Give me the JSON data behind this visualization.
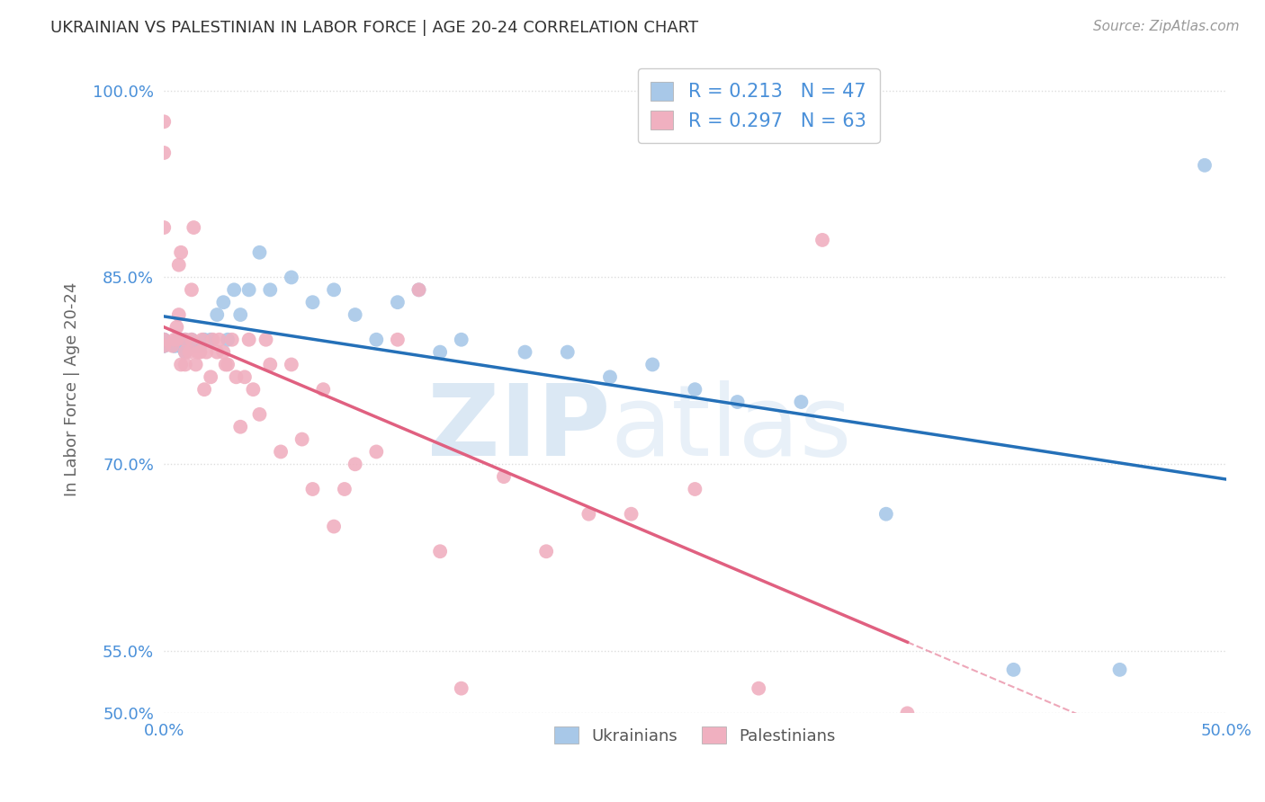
{
  "title": "UKRAINIAN VS PALESTINIAN IN LABOR FORCE | AGE 20-24 CORRELATION CHART",
  "source": "Source: ZipAtlas.com",
  "ylabel_label": "In Labor Force | Age 20-24",
  "watermark_zip": "ZIP",
  "watermark_atlas": "atlas",
  "xlim": [
    0.0,
    0.5
  ],
  "ylim": [
    0.5,
    1.02
  ],
  "xticks": [
    0.0,
    0.1,
    0.2,
    0.3,
    0.4,
    0.5
  ],
  "yticks": [
    0.5,
    0.55,
    0.7,
    0.85,
    1.0
  ],
  "ytick_labels": [
    "50.0%",
    "55.0%",
    "70.0%",
    "85.0%",
    "100.0%"
  ],
  "xtick_labels": [
    "0.0%",
    "",
    "",
    "",
    "",
    "50.0%"
  ],
  "R_ukrainian": 0.213,
  "N_ukrainian": 47,
  "R_palestinian": 0.297,
  "N_palestinian": 63,
  "ukrainian_color": "#a8c8e8",
  "ukrainian_line_color": "#2470b8",
  "palestinian_color": "#f0b0c0",
  "palestinian_line_color": "#e06080",
  "ukrainian_scatter_x": [
    0.0,
    0.0,
    0.0,
    0.0,
    0.005,
    0.005,
    0.007,
    0.007,
    0.008,
    0.008,
    0.01,
    0.01,
    0.01,
    0.012,
    0.013,
    0.015,
    0.017,
    0.019,
    0.022,
    0.025,
    0.028,
    0.03,
    0.033,
    0.036,
    0.04,
    0.045,
    0.05,
    0.06,
    0.07,
    0.08,
    0.09,
    0.1,
    0.11,
    0.12,
    0.13,
    0.14,
    0.17,
    0.19,
    0.21,
    0.23,
    0.25,
    0.27,
    0.3,
    0.34,
    0.4,
    0.45,
    0.49
  ],
  "ukrainian_scatter_y": [
    0.795,
    0.795,
    0.8,
    0.8,
    0.795,
    0.795,
    0.795,
    0.8,
    0.795,
    0.8,
    0.79,
    0.795,
    0.8,
    0.795,
    0.8,
    0.795,
    0.795,
    0.8,
    0.8,
    0.82,
    0.83,
    0.8,
    0.84,
    0.82,
    0.84,
    0.87,
    0.84,
    0.85,
    0.83,
    0.84,
    0.82,
    0.8,
    0.83,
    0.84,
    0.79,
    0.8,
    0.79,
    0.79,
    0.77,
    0.78,
    0.76,
    0.75,
    0.75,
    0.66,
    0.535,
    0.535,
    0.94
  ],
  "palestinian_scatter_x": [
    0.0,
    0.0,
    0.0,
    0.0,
    0.0,
    0.004,
    0.005,
    0.006,
    0.006,
    0.007,
    0.007,
    0.008,
    0.008,
    0.01,
    0.01,
    0.01,
    0.012,
    0.013,
    0.013,
    0.014,
    0.015,
    0.016,
    0.017,
    0.018,
    0.019,
    0.02,
    0.022,
    0.023,
    0.025,
    0.026,
    0.028,
    0.029,
    0.03,
    0.032,
    0.034,
    0.036,
    0.038,
    0.04,
    0.042,
    0.045,
    0.048,
    0.05,
    0.055,
    0.06,
    0.065,
    0.07,
    0.075,
    0.08,
    0.085,
    0.09,
    0.1,
    0.11,
    0.12,
    0.13,
    0.14,
    0.16,
    0.18,
    0.2,
    0.22,
    0.25,
    0.28,
    0.31,
    0.35
  ],
  "palestinian_scatter_y": [
    0.795,
    0.8,
    0.89,
    0.95,
    0.975,
    0.795,
    0.8,
    0.8,
    0.81,
    0.82,
    0.86,
    0.87,
    0.78,
    0.78,
    0.79,
    0.8,
    0.79,
    0.8,
    0.84,
    0.89,
    0.78,
    0.79,
    0.79,
    0.8,
    0.76,
    0.79,
    0.77,
    0.8,
    0.79,
    0.8,
    0.79,
    0.78,
    0.78,
    0.8,
    0.77,
    0.73,
    0.77,
    0.8,
    0.76,
    0.74,
    0.8,
    0.78,
    0.71,
    0.78,
    0.72,
    0.68,
    0.76,
    0.65,
    0.68,
    0.7,
    0.71,
    0.8,
    0.84,
    0.63,
    0.52,
    0.69,
    0.63,
    0.66,
    0.66,
    0.68,
    0.52,
    0.88,
    0.5
  ],
  "background_color": "#ffffff",
  "grid_color": "#dddddd",
  "title_color": "#333333",
  "axis_label_color": "#666666",
  "tick_label_color": "#4a90d9",
  "source_color": "#999999"
}
